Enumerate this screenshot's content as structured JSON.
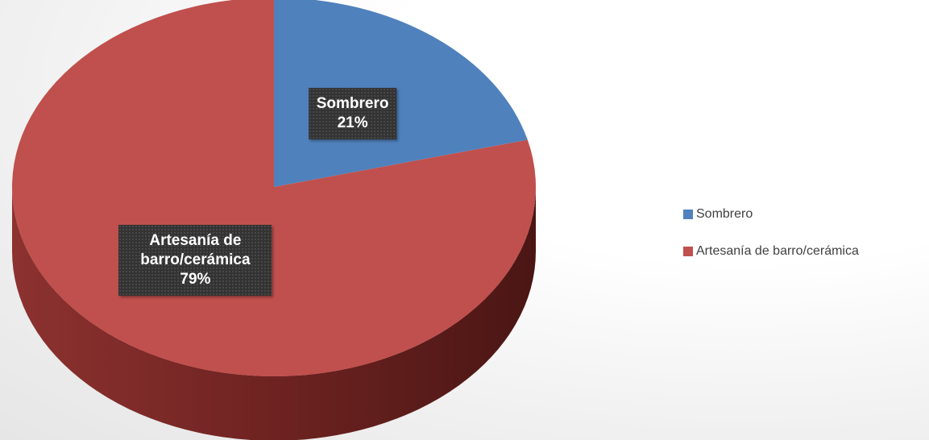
{
  "chart_data": {
    "type": "pie",
    "categories": [
      "Sombrero",
      "Artesanía de barro/cerámica"
    ],
    "values": [
      21,
      79
    ],
    "value_labels": [
      "21%",
      "79%"
    ],
    "colors": [
      "#4f81bd",
      "#c0504d"
    ],
    "legend": "right",
    "three_d": true
  }
}
